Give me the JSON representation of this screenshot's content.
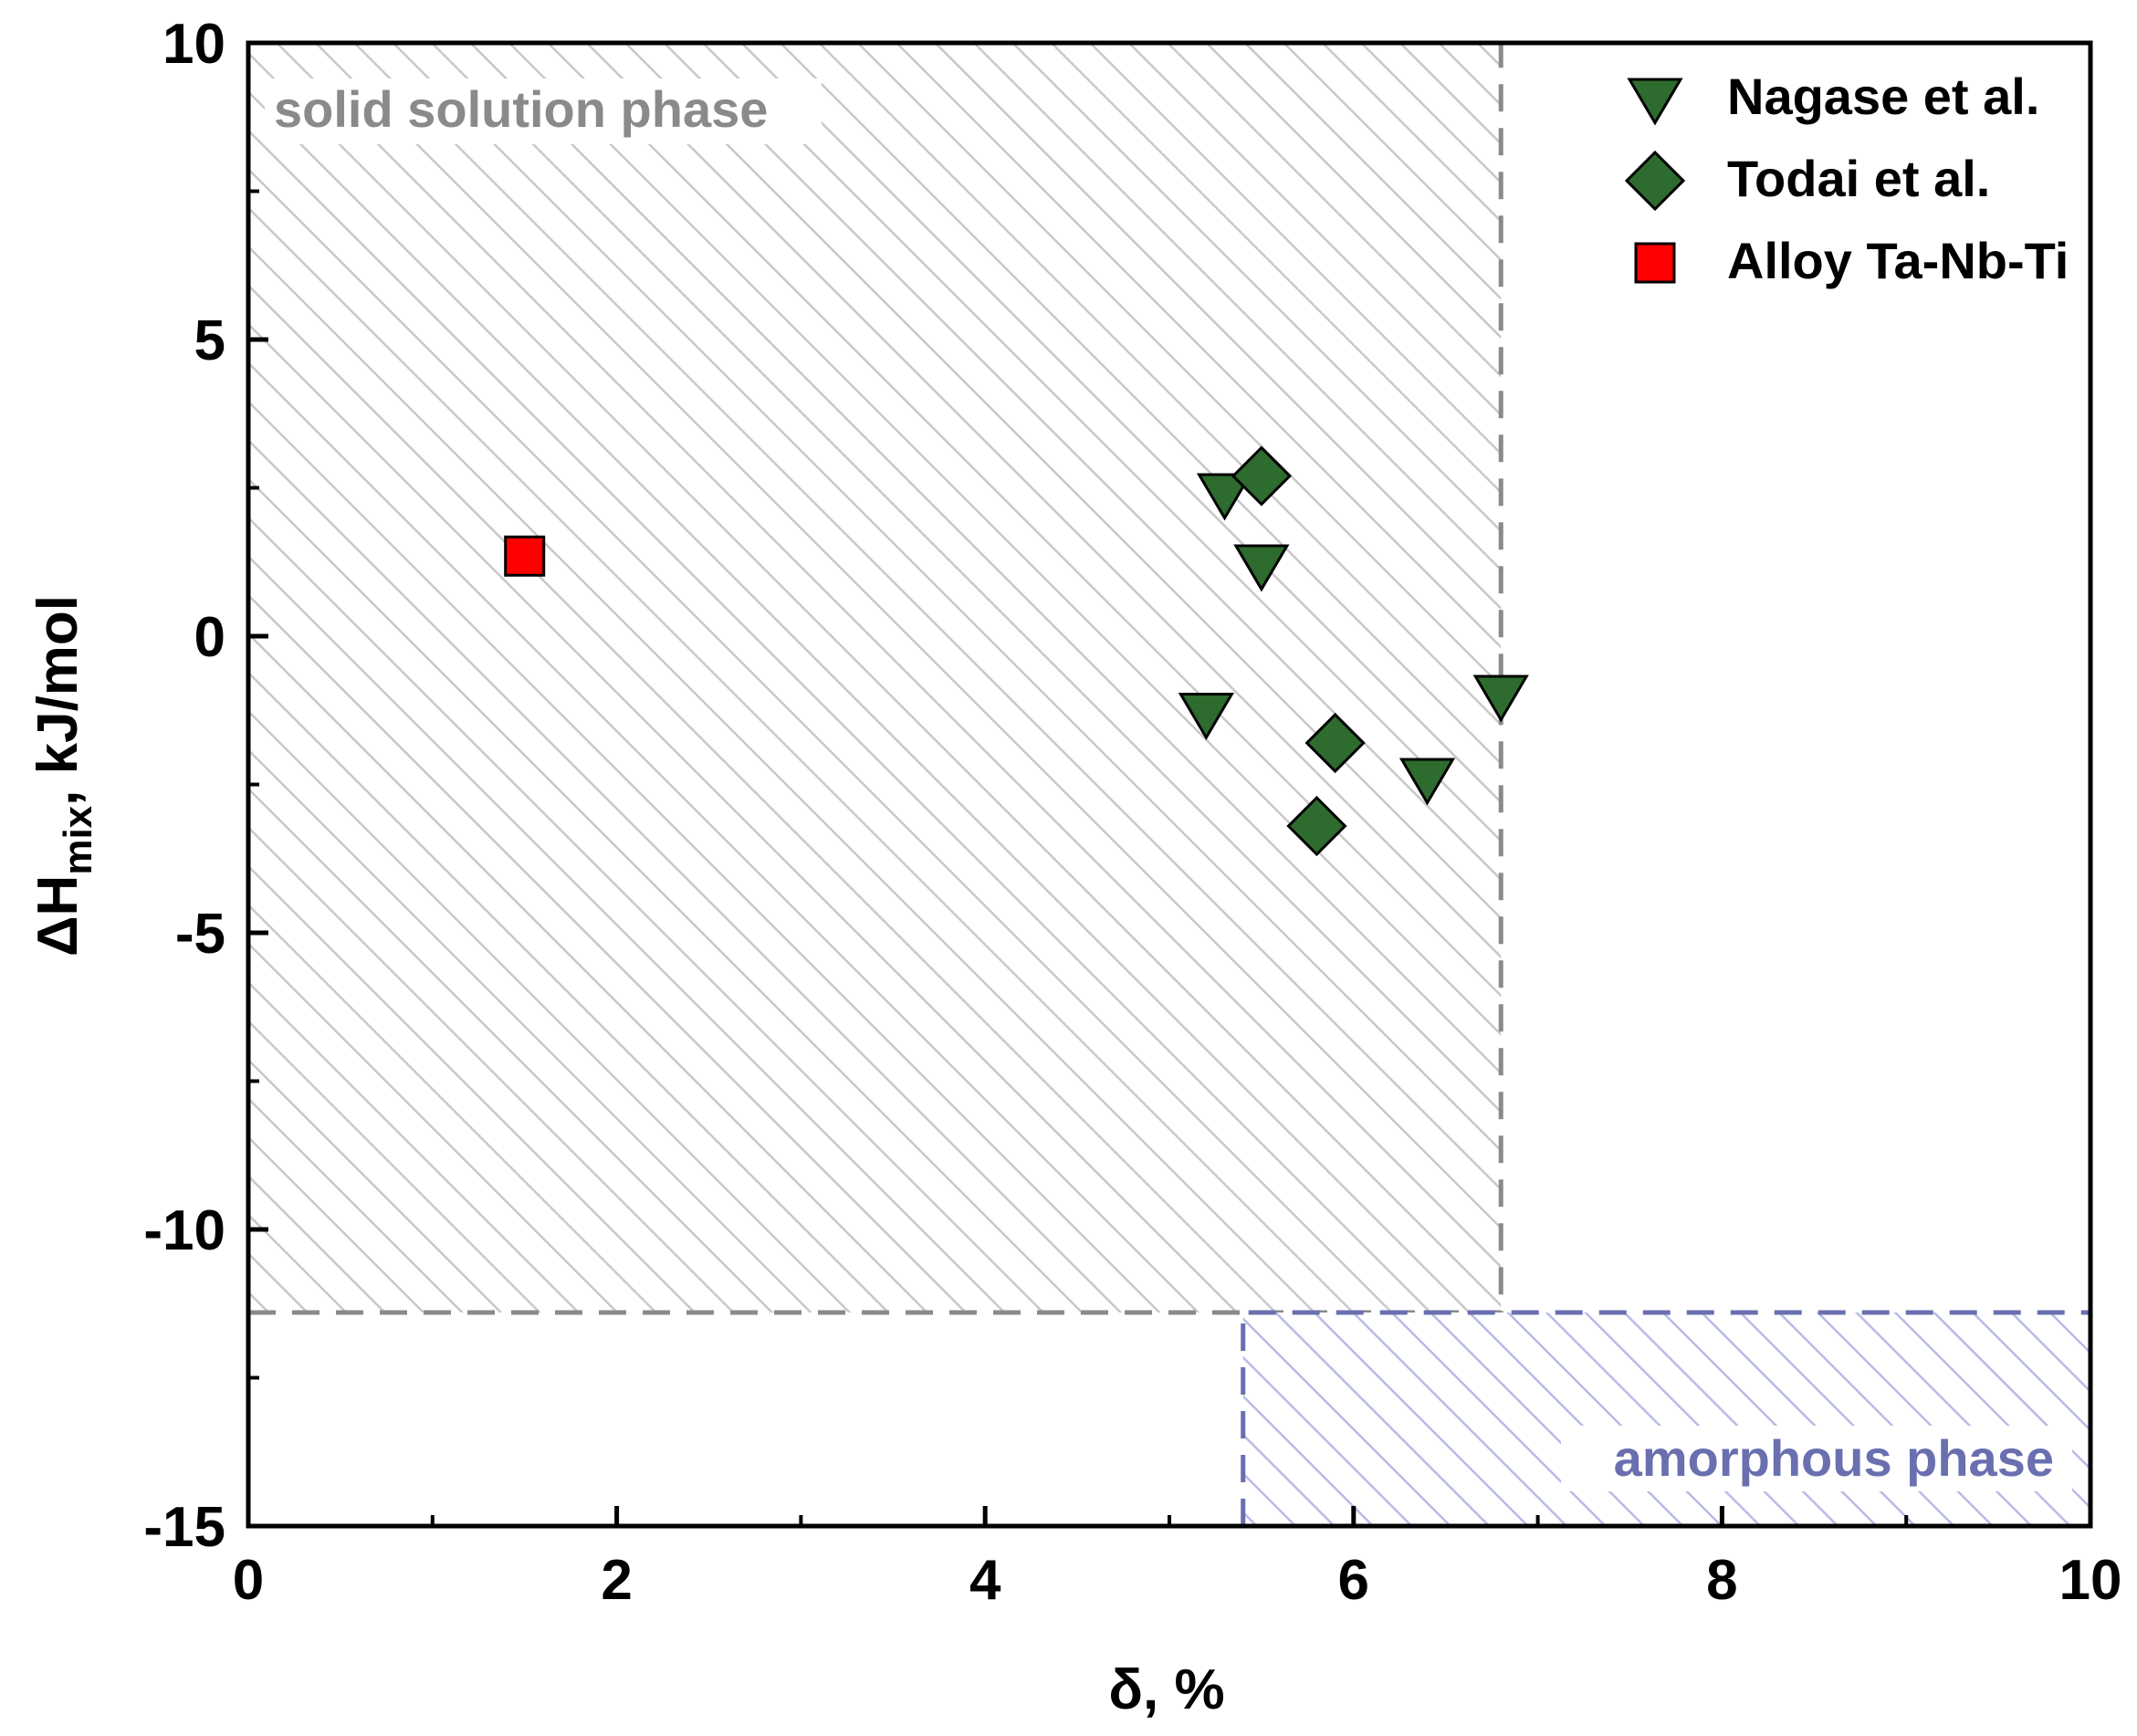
{
  "chart_data": {
    "type": "scatter",
    "xlabel": "δ, %",
    "ylabel_main": "ΔH",
    "ylabel_sub": "mix",
    "ylabel_rest": ", kJ/mol",
    "xlim": [
      0,
      10
    ],
    "ylim": [
      -15,
      10
    ],
    "xticks": [
      0,
      2,
      4,
      6,
      8,
      10
    ],
    "xtick_labels": [
      "0",
      "2",
      "4",
      "6",
      "8",
      "10"
    ],
    "yticks": [
      -15,
      -10,
      -5,
      0,
      5,
      10
    ],
    "ytick_labels": [
      "-15",
      "-10",
      "-5",
      "0",
      "5",
      "10"
    ],
    "grid": false,
    "legend_position": "top-right",
    "series": [
      {
        "name": "Nagase et al.",
        "marker": "triangle-down",
        "color": "#2e6b2e",
        "points": [
          {
            "x": 5.3,
            "y": 2.4
          },
          {
            "x": 5.5,
            "y": 1.2
          },
          {
            "x": 5.2,
            "y": -1.3
          },
          {
            "x": 6.4,
            "y": -2.4
          },
          {
            "x": 6.8,
            "y": -1.0
          }
        ]
      },
      {
        "name": "Todai et al.",
        "marker": "diamond",
        "color": "#2e6b2e",
        "points": [
          {
            "x": 5.5,
            "y": 2.7
          },
          {
            "x": 5.9,
            "y": -1.8
          },
          {
            "x": 5.8,
            "y": -3.2
          }
        ]
      },
      {
        "name": "Alloy Ta-Nb-Ti",
        "marker": "square",
        "color": "#ff0000",
        "points": [
          {
            "x": 1.5,
            "y": 1.35
          }
        ]
      }
    ],
    "regions": [
      {
        "label": "solid solution phase",
        "x": [
          0,
          6.8
        ],
        "y": [
          -11.4,
          10
        ],
        "color": "#8a8a8a",
        "hatch_color": "#c8c8c8",
        "label_position": "top-left"
      },
      {
        "label": "amorphous phase",
        "x": [
          5.4,
          10
        ],
        "y": [
          -15,
          -11.4
        ],
        "color": "#6a6fb0",
        "hatch_color": "#b8bbe6",
        "label_position": "bottom-right"
      }
    ]
  }
}
